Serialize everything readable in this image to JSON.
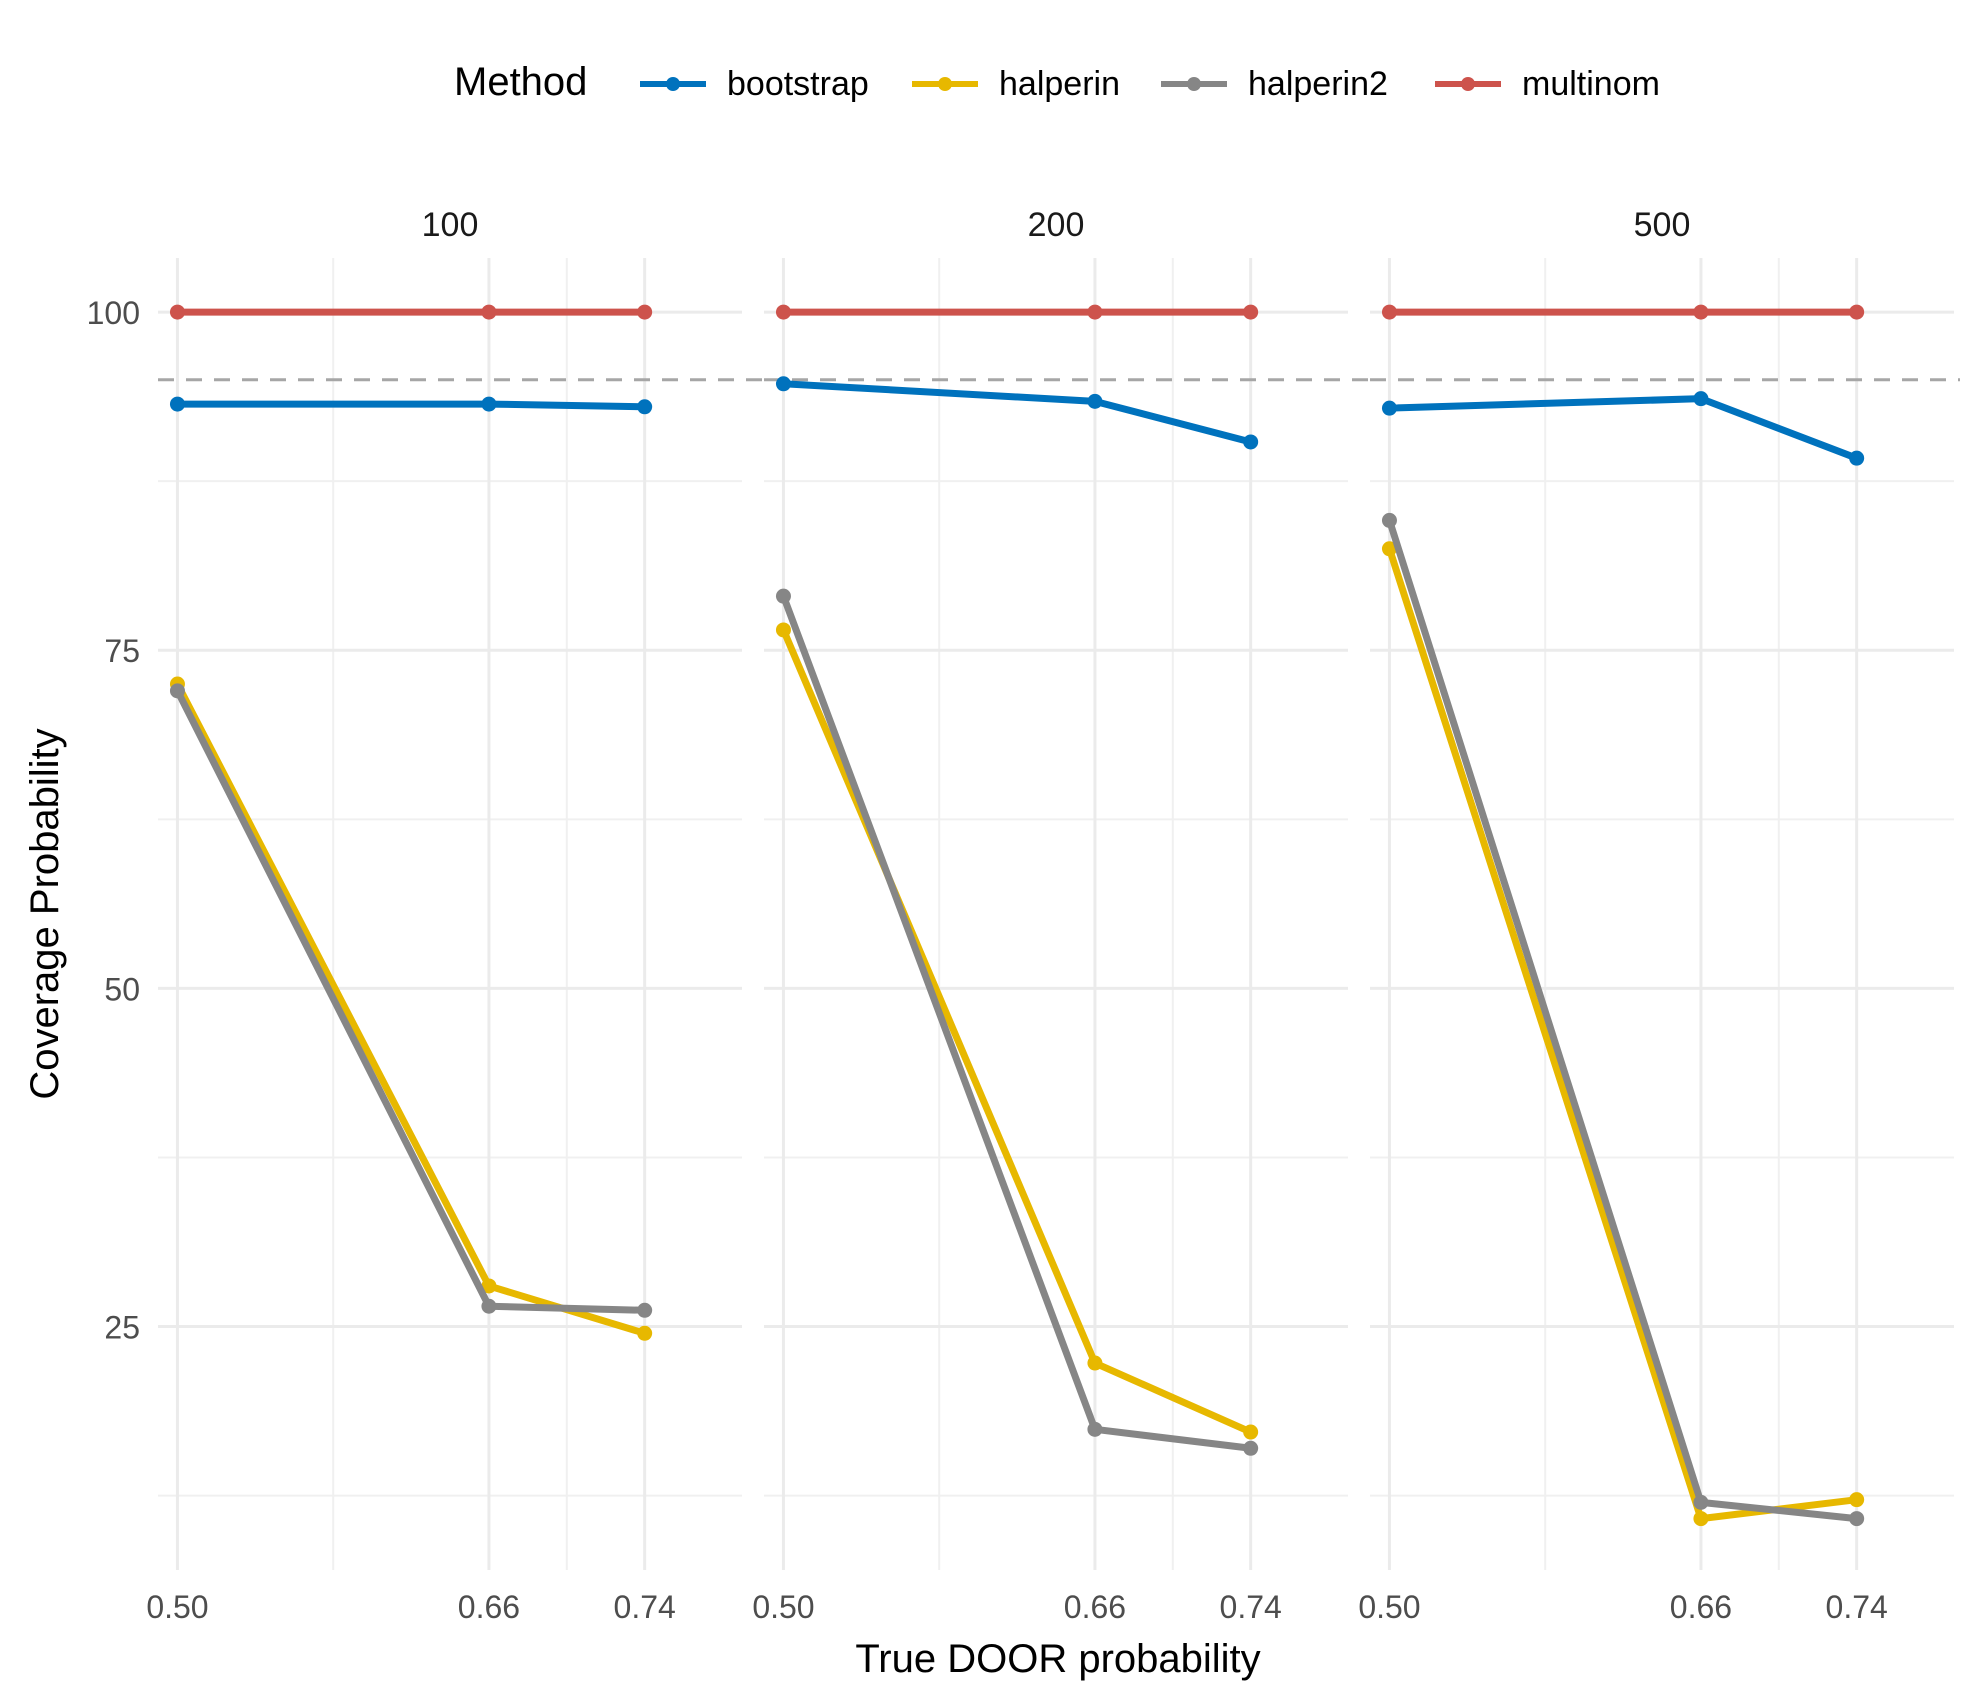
{
  "chart_data": {
    "type": "line",
    "xlabel": "True DOOR probability",
    "ylabel": "Coverage Probability",
    "legend": {
      "title": "Method",
      "position": "top"
    },
    "x_ticks": [
      0.5,
      0.66,
      0.74
    ],
    "x_tick_labels": [
      "0.50",
      "0.66",
      "0.74"
    ],
    "xlim": [
      0.49,
      0.79
    ],
    "y_ticks": [
      25,
      50,
      75,
      100
    ],
    "y_tick_labels": [
      "25",
      "50",
      "75",
      "100"
    ],
    "ylim": [
      7,
      104
    ],
    "grid": true,
    "reference_line": {
      "y": 95,
      "style": "dashed"
    },
    "series_colors": {
      "bootstrap": "#0072BD",
      "halperin": "#E7B800",
      "halperin2": "#868686",
      "multinom": "#CD534C"
    },
    "panels": [
      {
        "label": "100",
        "series": [
          {
            "name": "bootstrap",
            "x": [
              0.5,
              0.66,
              0.74
            ],
            "values": [
              93.2,
              93.2,
              93.0
            ]
          },
          {
            "name": "halperin",
            "x": [
              0.5,
              0.66,
              0.74
            ],
            "values": [
              72.5,
              28.0,
              24.5
            ]
          },
          {
            "name": "halperin2",
            "x": [
              0.5,
              0.66,
              0.74
            ],
            "values": [
              72.0,
              26.5,
              26.2
            ]
          },
          {
            "name": "multinom",
            "x": [
              0.5,
              0.66,
              0.74
            ],
            "values": [
              100,
              100,
              100
            ]
          }
        ]
      },
      {
        "label": "200",
        "series": [
          {
            "name": "bootstrap",
            "x": [
              0.5,
              0.66,
              0.74
            ],
            "values": [
              94.7,
              93.4,
              90.4
            ]
          },
          {
            "name": "halperin",
            "x": [
              0.5,
              0.66,
              0.74
            ],
            "values": [
              76.5,
              22.3,
              17.2
            ]
          },
          {
            "name": "halperin2",
            "x": [
              0.5,
              0.66,
              0.74
            ],
            "values": [
              79.0,
              17.4,
              16.0
            ]
          },
          {
            "name": "multinom",
            "x": [
              0.5,
              0.66,
              0.74
            ],
            "values": [
              100,
              100,
              100
            ]
          }
        ]
      },
      {
        "label": "500",
        "series": [
          {
            "name": "bootstrap",
            "x": [
              0.5,
              0.66,
              0.74
            ],
            "values": [
              92.9,
              93.6,
              89.2
            ]
          },
          {
            "name": "halperin",
            "x": [
              0.5,
              0.66,
              0.74
            ],
            "values": [
              82.5,
              10.8,
              12.2
            ]
          },
          {
            "name": "halperin2",
            "x": [
              0.5,
              0.66,
              0.74
            ],
            "values": [
              84.6,
              12.0,
              10.8
            ]
          },
          {
            "name": "multinom",
            "x": [
              0.5,
              0.66,
              0.74
            ],
            "values": [
              100,
              100,
              100
            ]
          }
        ]
      }
    ]
  }
}
